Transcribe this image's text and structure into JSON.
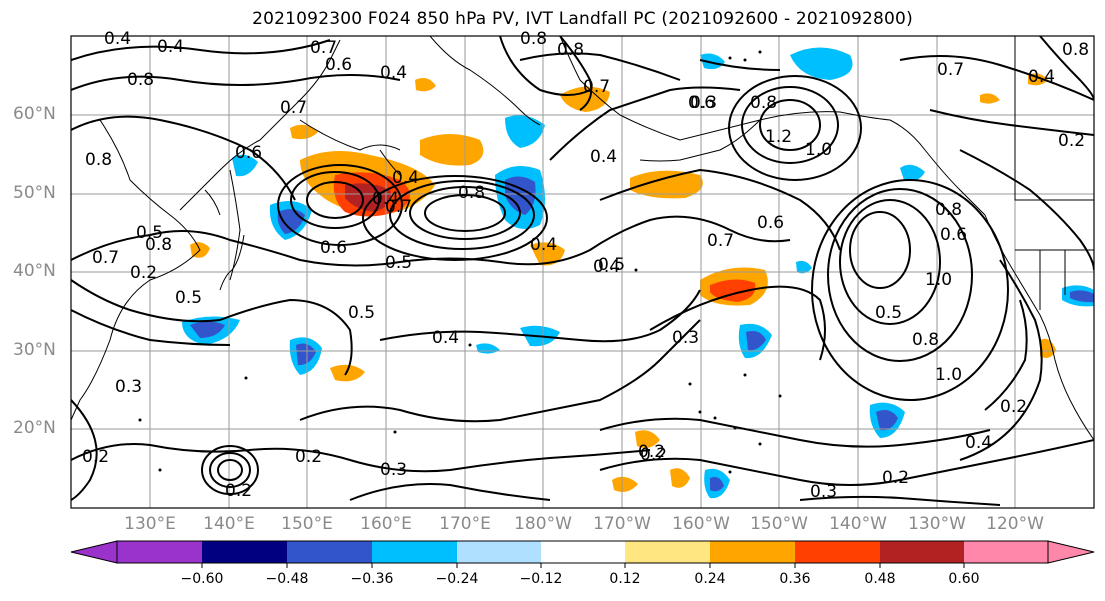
{
  "title": "2021092300 F024 850 hPa PV, IVT Landfall PC (2021092600 - 2021092800)",
  "map": {
    "lat_labels": [
      "60°N",
      "50°N",
      "40°N",
      "30°N",
      "20°N"
    ],
    "lon_labels": [
      "130°E",
      "140°E",
      "150°E",
      "160°E",
      "170°E",
      "180°W",
      "170°W",
      "160°W",
      "150°W",
      "140°W",
      "130°W",
      "120°W"
    ],
    "contour_labels": [
      "0.4",
      "0.4",
      "0.7",
      "0.6",
      "0.8",
      "0.8",
      "0.8",
      "0.4",
      "0.7",
      "0.8",
      "0.6",
      "0.4",
      "0.7",
      "0.5",
      "0.7",
      "0.2",
      "0.5",
      "0.8",
      "0.4",
      "0.8",
      "0.6",
      "0.5",
      "0.4",
      "0.4",
      "0.3",
      "0.7",
      "0.6",
      "0.8",
      "1.0",
      "1.2",
      "0.7",
      "0.6",
      "0.5",
      "0.4",
      "0.3",
      "0.4",
      "0.5",
      "0.4",
      "0.3",
      "0.2",
      "0.2",
      "0.2",
      "0.3",
      "0.2",
      "0.3",
      "0.2",
      "0.2",
      "1.0",
      "0.8",
      "0.5",
      "0.6",
      "1.0",
      "0.8",
      "0.4",
      "0.2",
      "0.2",
      "0.8",
      "0.7"
    ]
  },
  "colorbar": {
    "ticks": [
      "−0.60",
      "−0.48",
      "−0.36",
      "−0.24",
      "−0.12",
      "0.12",
      "0.24",
      "0.36",
      "0.48",
      "0.60"
    ],
    "colors": [
      "#9933cc",
      "#000080",
      "#3355cc",
      "#00bfff",
      "#b0e0ff",
      "#ffffff",
      "#ffe680",
      "#ffa500",
      "#ff4000",
      "#b22222",
      "#ff88aa"
    ]
  }
}
